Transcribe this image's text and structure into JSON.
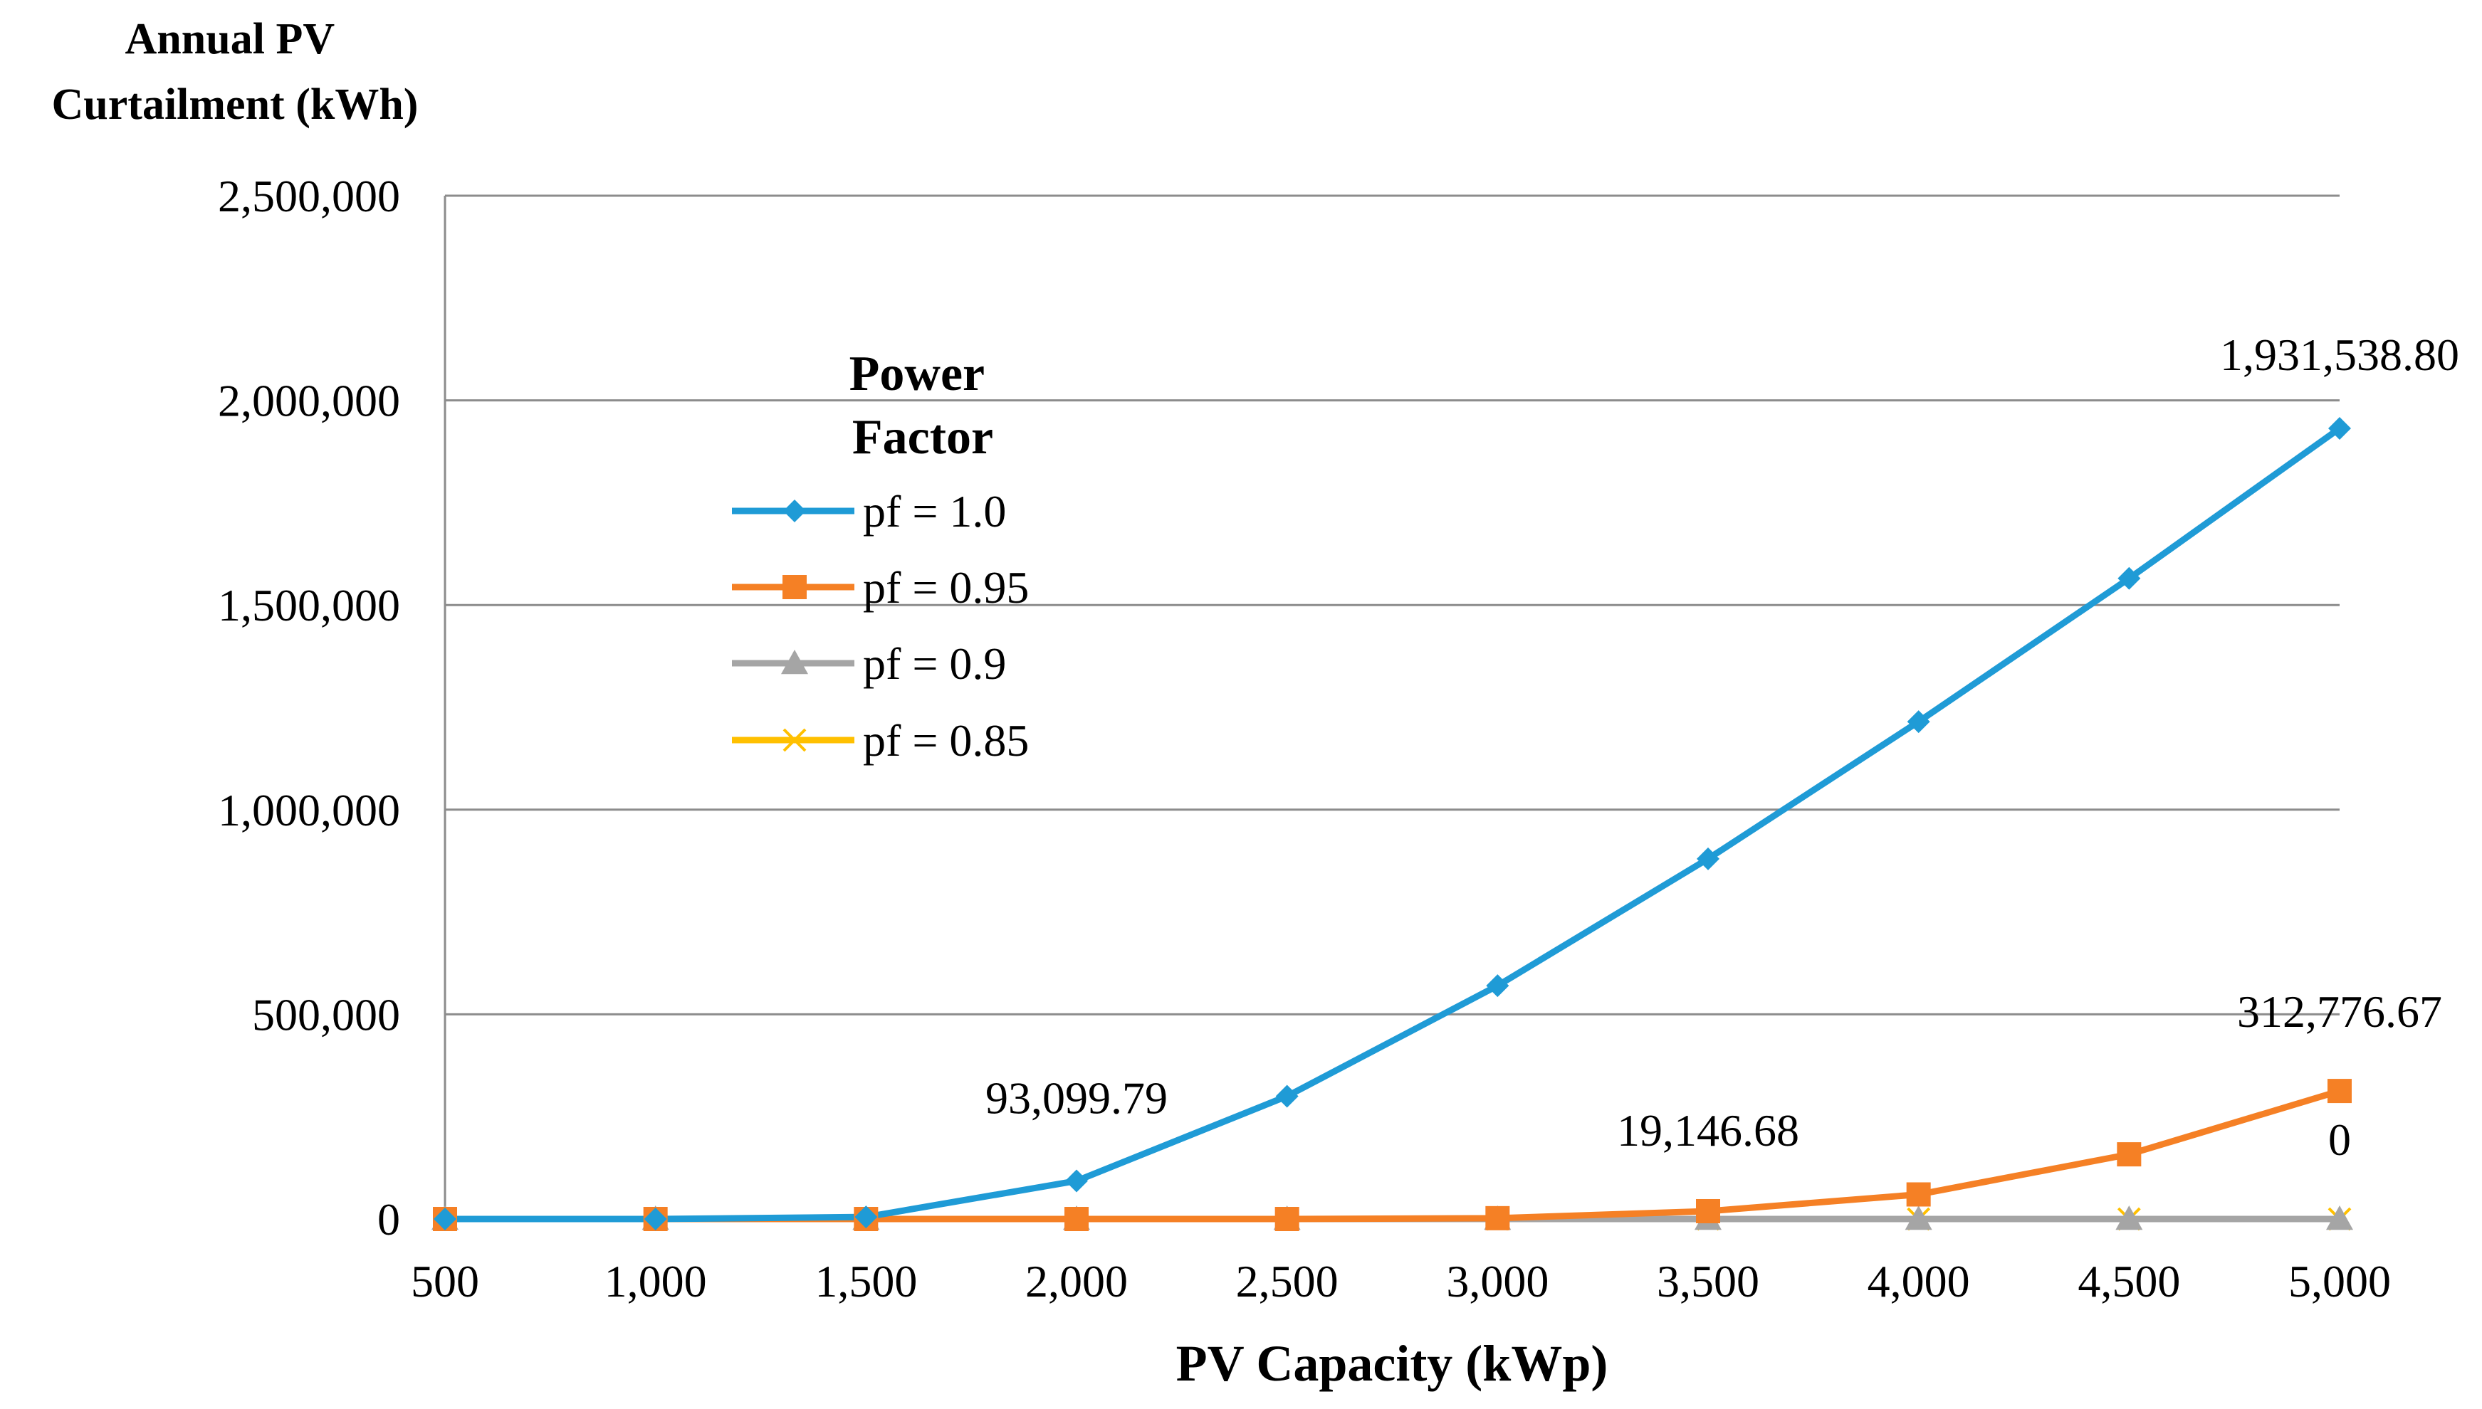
{
  "chart_data": {
    "type": "line",
    "title": "",
    "ylabel_lines": [
      "Annual PV",
      "Curtailment (kWh)"
    ],
    "xlabel": "PV Capacity (kWp)",
    "x": [
      500,
      1000,
      1500,
      2000,
      2500,
      3000,
      3500,
      4000,
      4500,
      5000
    ],
    "x_tick_labels": [
      "500",
      "1,000",
      "1,500",
      "2,000",
      "2,500",
      "3,000",
      "3,500",
      "4,000",
      "4,500",
      "5,000"
    ],
    "ylim": [
      0,
      2500000
    ],
    "y_ticks": [
      0,
      500000,
      1000000,
      1500000,
      2000000,
      2500000
    ],
    "y_tick_labels": [
      "0",
      "500,000",
      "1,000,000",
      "1,500,000",
      "2,000,000",
      "2,500,000"
    ],
    "grid": "horizontal",
    "legend": {
      "title_lines": [
        "Power",
        "Factor"
      ],
      "placement": "upper-left-center"
    },
    "series": [
      {
        "name": "pf = 1.0",
        "color": "#1f9bd6",
        "marker": "diamond",
        "values": [
          0,
          0,
          5000,
          93099.79,
          300000,
          570000,
          880000,
          1215000,
          1565000,
          1931538.8
        ]
      },
      {
        "name": "pf = 0.95",
        "color": "#f58025",
        "marker": "square",
        "values": [
          0,
          0,
          0,
          0,
          0,
          2000,
          19146.68,
          60000,
          158000,
          312776.67
        ]
      },
      {
        "name": "pf = 0.9",
        "color": "#a5a5a5",
        "marker": "triangle",
        "values": [
          0,
          0,
          0,
          0,
          0,
          0,
          0,
          0,
          0,
          0
        ]
      },
      {
        "name": "pf = 0.85",
        "color": "#ffc000",
        "marker": "x",
        "values": [
          0,
          0,
          0,
          0,
          0,
          0,
          0,
          0,
          0,
          0
        ]
      }
    ],
    "annotations": [
      {
        "text": "93,099.79",
        "series": 0,
        "index": 3,
        "position": "above"
      },
      {
        "text": "1,931,538.80",
        "series": 0,
        "index": 9,
        "position": "above"
      },
      {
        "text": "312,776.67",
        "series": 1,
        "index": 9,
        "position": "above"
      },
      {
        "text": "19,146.68",
        "series": 1,
        "index": 6,
        "position": "above"
      },
      {
        "text": "0",
        "series": 2,
        "index": 9,
        "position": "above"
      }
    ]
  }
}
